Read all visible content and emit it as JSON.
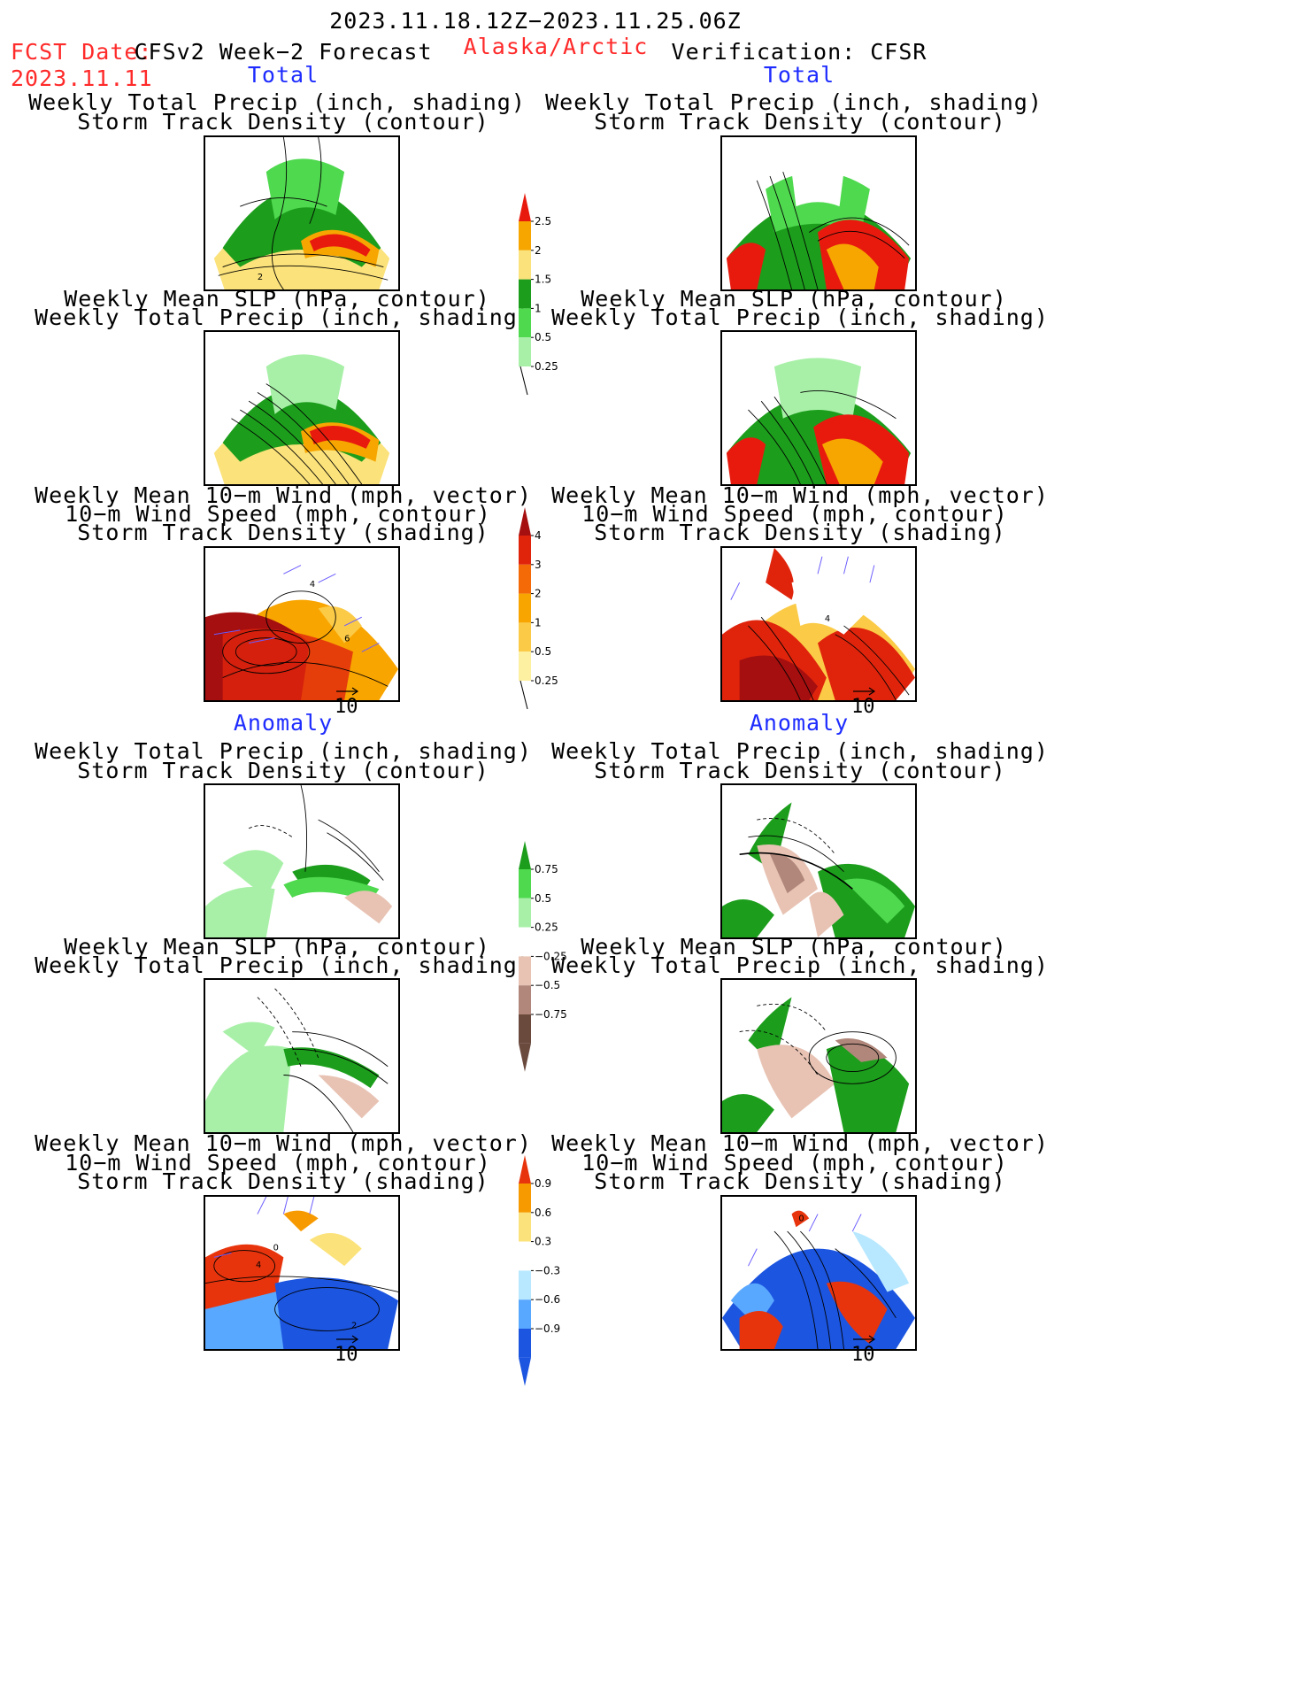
{
  "header": {
    "period": "2023.11.18.12Z−2023.11.25.06Z",
    "fcst_label": "FCST Date:",
    "fcst_date": "2023.11.11",
    "model": "CFSv2 Week−2 Forecast",
    "region": "Alaska/Arctic",
    "verification": "Verification: CFSR"
  },
  "sections": {
    "total_left": "Total",
    "total_right": "Total",
    "anom_left": "Anomaly",
    "anom_right": "Anomaly"
  },
  "titles": {
    "precip_std": [
      "Weekly Total Precip (inch, shading)",
      "Storm Track Density (contour)"
    ],
    "slp_precip": [
      "Weekly Mean SLP (hPa, contour)",
      "Weekly Total Precip (inch, shading)"
    ],
    "wind": [
      "Weekly Mean 10−m Wind (mph, vector)",
      "10−m Wind Speed (mph, contour)",
      "Storm Track Density (shading)"
    ]
  },
  "vector_ref": "10",
  "colorbars": {
    "total_precip": {
      "labels": [
        "2.5",
        "2",
        "1.5",
        "1",
        "0.5",
        "0.25"
      ],
      "colors": [
        "#e81a0e",
        "#f7a600",
        "#fbe27a",
        "#1c9e1c",
        "#4fd94f",
        "#a8f0a8"
      ]
    },
    "total_std": {
      "labels": [
        "4",
        "3",
        "2",
        "1",
        "0.5",
        "0.25"
      ],
      "colors": [
        "#a50f0f",
        "#e0240c",
        "#f36a07",
        "#f9a500",
        "#fbcb47",
        "#fdf0a0"
      ]
    },
    "anom_precip": {
      "labels": [
        "0.75",
        "0.5",
        "0.25",
        "−0.25",
        "−0.5",
        "−0.75"
      ],
      "colors": [
        "#1c9e1c",
        "#4fd94f",
        "#a8f0a8",
        "#ffffff",
        "#e8c3b4",
        "#b0877a",
        "#6b4a3e"
      ]
    },
    "anom_std": {
      "labels": [
        "0.9",
        "0.6",
        "0.3",
        "−0.3",
        "−0.6",
        "−0.9"
      ],
      "colors": [
        "#e8340c",
        "#f79a00",
        "#fbe27a",
        "#ffffff",
        "#b8e8ff",
        "#59a8ff",
        "#1c55e0"
      ]
    }
  },
  "panel_labels": {
    "fc_total_precip": "2",
    "fc_total_wind_a": "4",
    "fc_total_wind_b": "6",
    "fc_anom_wind_a": "4",
    "fc_anom_wind_b": "0",
    "fc_anom_wind_c": "2",
    "obs_total_wind": "4",
    "obs_anom_wind": "0"
  },
  "palette": {
    "green_dark": "#1c9e1c",
    "green_mid": "#4fd94f",
    "green_light": "#a8f0a8",
    "red": "#e81a0e",
    "orange": "#f7a600",
    "yellow": "#fbe27a",
    "brown_light": "#e8c3b4",
    "brown_mid": "#b0877a",
    "blue_dark": "#1c55e0",
    "blue_mid": "#59a8ff",
    "blue_light": "#b8e8ff",
    "vector": "#6a5cff"
  }
}
